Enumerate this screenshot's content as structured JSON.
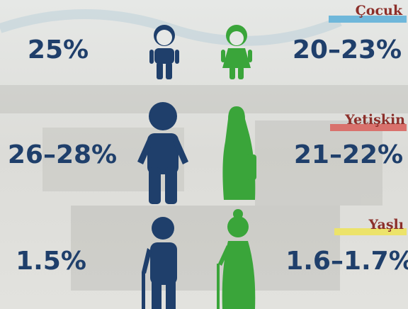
{
  "rows": [
    {
      "label": "Çocuk",
      "left": "25%",
      "right": "20–23%"
    },
    {
      "label": "Yetişkin",
      "left": "26–28%",
      "right": "21–22%"
    },
    {
      "label": "Yaşlı",
      "left": "1.5%",
      "right": "1.6–1.7%"
    }
  ]
}
